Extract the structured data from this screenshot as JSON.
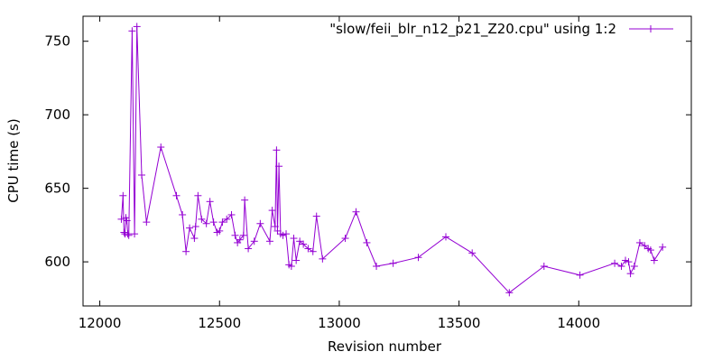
{
  "chart_data": {
    "type": "line",
    "title": "",
    "xlabel": "Revision number",
    "ylabel": "CPU time (s)",
    "xlim": [
      11930,
      14470
    ],
    "ylim": [
      570,
      767
    ],
    "xticks": [
      12000,
      12500,
      13000,
      13500,
      14000
    ],
    "xtick_labels": [
      "12000",
      "12500",
      "13000",
      "13500",
      "14000"
    ],
    "yticks": [
      600,
      650,
      700,
      750
    ],
    "ytick_labels": [
      "600",
      "650",
      "700",
      "750"
    ],
    "grid": false,
    "legend_position": "top-right",
    "series": [
      {
        "name": "\"slow/feii_blr_n12_p21_Z20.cpu\" using 1:2",
        "color": "#9400d3",
        "marker": "plus",
        "x": [
          12090,
          12097,
          12101,
          12105,
          12109,
          12113,
          12117,
          12121,
          12135,
          12145,
          12155,
          12175,
          12195,
          12255,
          12320,
          12345,
          12360,
          12375,
          12395,
          12400,
          12410,
          12425,
          12445,
          12460,
          12475,
          12490,
          12500,
          12512,
          12530,
          12550,
          12565,
          12575,
          12585,
          12600,
          12605,
          12620,
          12645,
          12670,
          12710,
          12720,
          12732,
          12738,
          12742,
          12748,
          12755,
          12765,
          12778,
          12790,
          12800,
          12810,
          12820,
          12835,
          12850,
          12870,
          12890,
          12905,
          12930,
          13025,
          13070,
          13115,
          13155,
          13225,
          13330,
          13445,
          13555,
          13710,
          13855,
          14005,
          14150,
          14178,
          14195,
          14208,
          14216,
          14232,
          14255,
          14275,
          14290,
          14300,
          14315,
          14350
        ],
        "y": [
          629,
          645,
          620,
          619,
          630,
          628,
          619,
          618,
          757,
          619,
          760,
          659,
          627,
          678,
          645,
          632,
          607,
          623,
          616,
          624,
          645,
          629,
          626,
          641,
          627,
          620,
          621,
          627,
          629,
          632,
          618,
          613,
          615,
          618,
          642,
          609,
          614,
          626,
          614,
          635,
          624,
          676,
          621,
          665,
          619,
          618,
          619,
          598,
          597,
          616,
          601,
          614,
          612,
          609,
          607,
          631,
          602,
          616,
          634,
          613,
          597,
          599,
          603,
          617,
          606,
          579,
          597,
          591,
          599,
          597,
          601,
          600,
          592,
          597,
          613,
          611,
          609,
          608,
          601,
          610
        ]
      }
    ]
  }
}
